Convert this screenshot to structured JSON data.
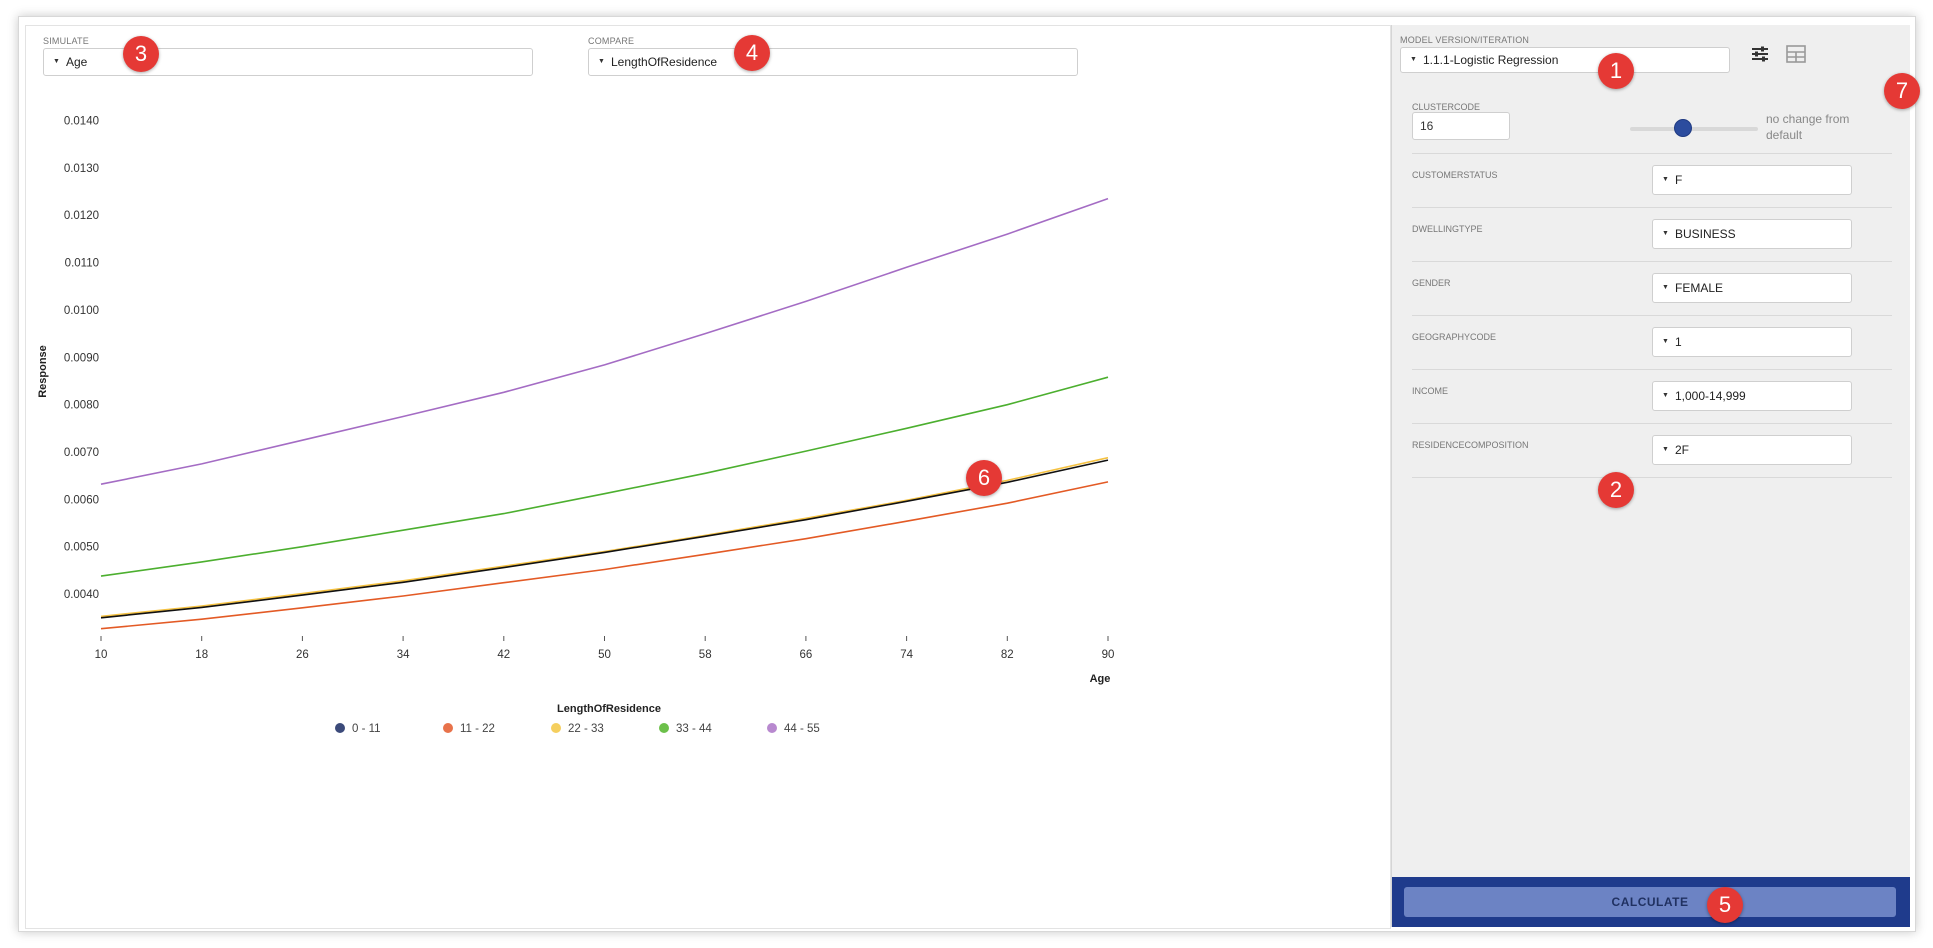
{
  "simulate": {
    "label": "SIMULATE",
    "value": "Age"
  },
  "compare": {
    "label": "COMPARE",
    "value": "LengthOfResidence"
  },
  "model": {
    "label": "MODEL VERSION/ITERATION",
    "value": "1.1.1-Logistic Regression"
  },
  "toolbar": {
    "settings_icon": "sliders-icon",
    "table_icon": "table-icon"
  },
  "clustercode": {
    "label": "CLUSTERCODE",
    "value": "16",
    "slider_note": "no change from default"
  },
  "params": [
    {
      "label": "CUSTOMERSTATUS",
      "value": "F"
    },
    {
      "label": "DWELLINGTYPE",
      "value": "BUSINESS"
    },
    {
      "label": "GENDER",
      "value": "FEMALE"
    },
    {
      "label": "GEOGRAPHYCODE",
      "value": "1"
    },
    {
      "label": "INCOME",
      "value": "1,000-14,999"
    },
    {
      "label": "RESIDENCECOMPOSITION",
      "value": "2F"
    }
  ],
  "calculate_label": "CALCULATE",
  "badges": [
    "1",
    "2",
    "3",
    "4",
    "5",
    "6",
    "7"
  ],
  "chart_data": {
    "type": "line",
    "xlabel": "Age",
    "ylabel": "Response",
    "legend_title": "LengthOfResidence",
    "legend_position": "bottom",
    "xlim": [
      10,
      90
    ],
    "ylim": [
      0.0032,
      0.0142
    ],
    "x_ticks": [
      10,
      18,
      26,
      34,
      42,
      50,
      58,
      66,
      74,
      82,
      90
    ],
    "y_ticks": [
      "0.0040",
      "0.0050",
      "0.0060",
      "0.0070",
      "0.0080",
      "0.0090",
      "0.0100",
      "0.0110",
      "0.0120",
      "0.0130",
      "0.0140"
    ],
    "grid": false,
    "x": [
      10,
      18,
      26,
      34,
      42,
      50,
      58,
      66,
      74,
      82,
      90
    ],
    "series": [
      {
        "name": "0 - 11",
        "color": "#111111",
        "legend_color": "#3b4a7a",
        "values": [
          0.0035,
          0.00372,
          0.00398,
          0.00425,
          0.00456,
          0.00488,
          0.00522,
          0.00557,
          0.00596,
          0.00636,
          0.00683
        ]
      },
      {
        "name": "11 - 22",
        "color": "#e35a25",
        "legend_color": "#e8724a",
        "values": [
          0.00327,
          0.00347,
          0.00371,
          0.00396,
          0.00424,
          0.00452,
          0.00484,
          0.00517,
          0.00554,
          0.00592,
          0.00637
        ]
      },
      {
        "name": "22 - 33",
        "color": "#f5c242",
        "legend_color": "#f5cf5e",
        "values": [
          0.00353,
          0.00375,
          0.00401,
          0.00428,
          0.00459,
          0.0049,
          0.00524,
          0.0056,
          0.00598,
          0.0064,
          0.00688
        ]
      },
      {
        "name": "33 - 44",
        "color": "#4caf2f",
        "legend_color": "#6cc04a",
        "values": [
          0.00438,
          0.00468,
          0.005,
          0.00535,
          0.0057,
          0.00612,
          0.00655,
          0.00702,
          0.0075,
          0.008,
          0.00858
        ]
      },
      {
        "name": "44 - 55",
        "color": "#a46cc4",
        "legend_color": "#b889cf",
        "values": [
          0.00632,
          0.00675,
          0.00725,
          0.00775,
          0.00826,
          0.00884,
          0.0095,
          0.01018,
          0.0109,
          0.0116,
          0.01235
        ]
      }
    ]
  }
}
